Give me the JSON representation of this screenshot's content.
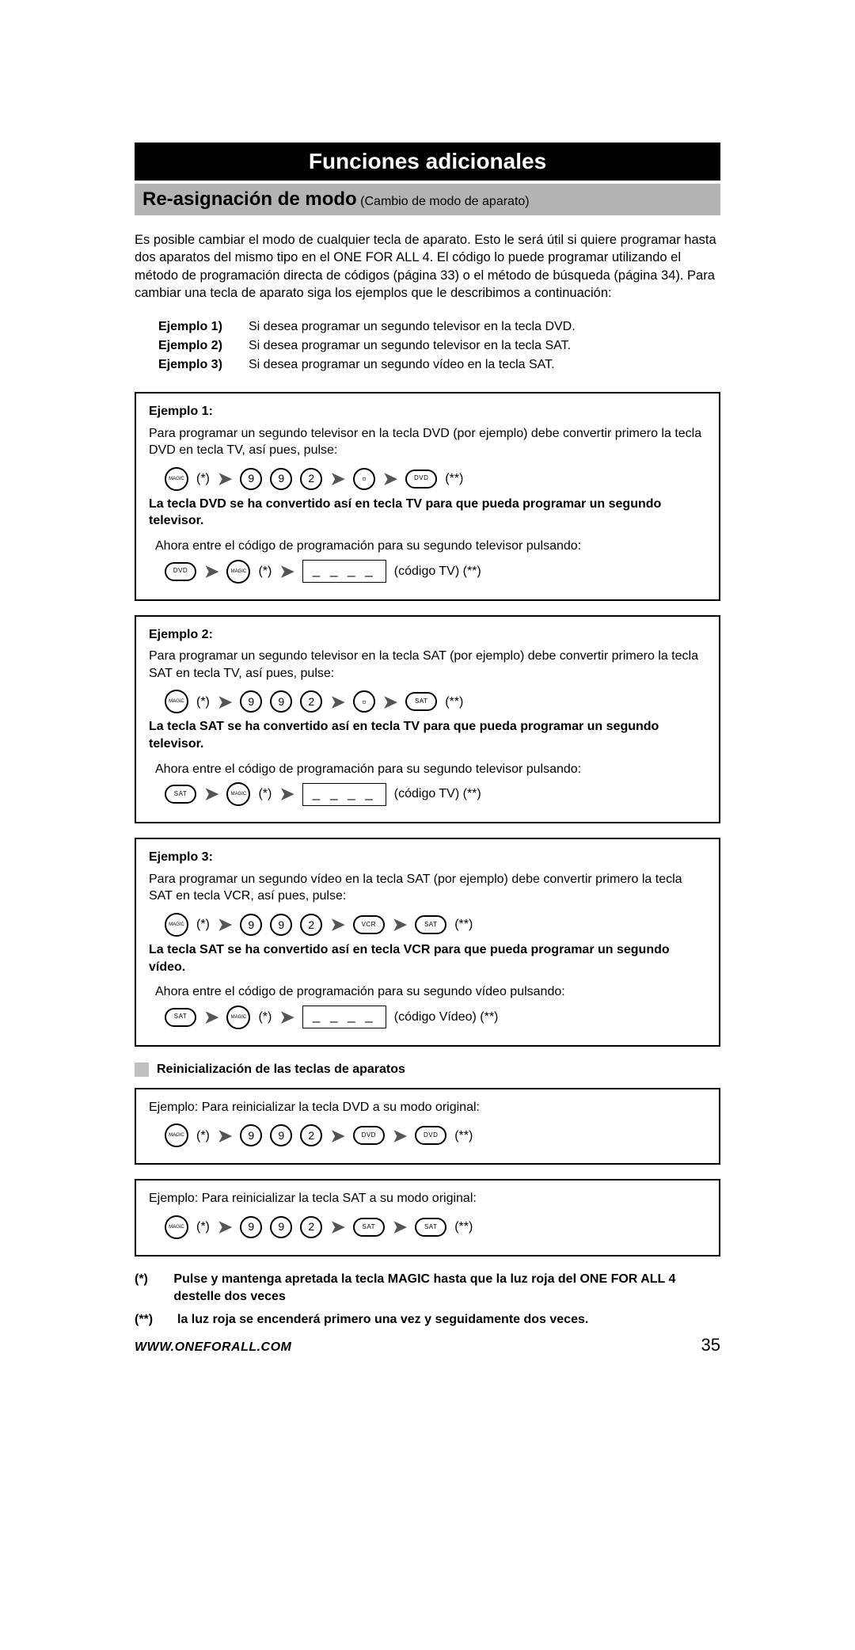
{
  "header": {
    "black": "Funciones adicionales",
    "gray_main": "Re-asignación de modo",
    "gray_sub": "(Cambio de modo de aparato)"
  },
  "intro": "Es posible cambiar el modo de cualquier tecla de aparato. Esto le será útil si quiere programar hasta dos aparatos del mismo tipo en el ONE FOR ALL 4. El código lo puede programar utilizando el método de programación directa de códigos (página 33) o el método de búsqueda (página 34). Para cambiar una tecla de aparato siga los ejemplos que le describimos a continuación:",
  "example_list": [
    {
      "label": "Ejemplo 1)",
      "text": "Si desea programar un segundo televisor en la tecla DVD."
    },
    {
      "label": "Ejemplo 2)",
      "text": "Si desea programar un segundo televisor en la tecla SAT."
    },
    {
      "label": "Ejemplo 3)",
      "text": "Si desea programar un segundo vídeo en la tecla SAT."
    }
  ],
  "examples": [
    {
      "title": "Ejemplo 1:",
      "desc": "Para programar un segundo televisor en la tecla DVD (por ejemplo) debe convertir primero la tecla DVD en tecla TV, así pues, pulse:",
      "seq1": {
        "prefix_note": "(*)",
        "digits": [
          "9",
          "9",
          "2"
        ],
        "mid_btn": "▫",
        "end_btn": "DVD",
        "suffix_note": "(**)"
      },
      "result": "La tecla DVD se ha convertido así en tecla TV para que pueda programar un segundo televisor.",
      "follow": "Ahora entre el código de programación para su segundo televisor pulsando:",
      "seq2": {
        "start_btn": "DVD",
        "mid_note": "(*)",
        "code_placeholder": "_ _ _ _",
        "code_label": "(código TV) (**)"
      }
    },
    {
      "title": "Ejemplo 2:",
      "desc": "Para programar un segundo televisor en la tecla SAT (por ejemplo) debe convertir primero la tecla SAT en tecla TV, así pues, pulse:",
      "seq1": {
        "prefix_note": "(*)",
        "digits": [
          "9",
          "9",
          "2"
        ],
        "mid_btn": "▫",
        "end_btn": "SAT",
        "suffix_note": "(**)"
      },
      "result": "La tecla SAT se ha convertido así en tecla TV para que pueda programar un segundo televisor.",
      "follow": "Ahora entre el código de programación para su segundo televisor pulsando:",
      "seq2": {
        "start_btn": "SAT",
        "mid_note": "(*)",
        "code_placeholder": "_ _ _ _",
        "code_label": "(código TV) (**)"
      }
    },
    {
      "title": "Ejemplo 3:",
      "desc": "Para programar un segundo vídeo en la tecla SAT (por ejemplo) debe convertir primero la tecla SAT en tecla VCR, así pues, pulse:",
      "seq1": {
        "prefix_note": "(*)",
        "digits": [
          "9",
          "9",
          "2"
        ],
        "mid_btn": "VCR",
        "mid_oval": true,
        "end_btn": "SAT",
        "suffix_note": "(**)"
      },
      "result": "La tecla SAT se ha convertido así en tecla VCR para que pueda programar un segundo vídeo.",
      "follow": "Ahora entre el código de programación para su segundo vídeo pulsando:",
      "seq2": {
        "start_btn": "SAT",
        "mid_note": "(*)",
        "code_placeholder": "_ _ _ _",
        "code_label": "(código Vídeo) (**)"
      }
    }
  ],
  "reset_heading": "Reinicialización de las teclas de aparatos",
  "resets": [
    {
      "desc": "Ejemplo: Para reinicializar la tecla DVD a su modo original:",
      "seq": {
        "prefix_note": "(*)",
        "digits": [
          "9",
          "9",
          "2"
        ],
        "btn": "DVD",
        "suffix_note": "(**)"
      }
    },
    {
      "desc": "Ejemplo: Para reinicializar la tecla SAT a su modo original:",
      "seq": {
        "prefix_note": "(*)",
        "digits": [
          "9",
          "9",
          "2"
        ],
        "btn": "SAT",
        "suffix_note": "(**)"
      }
    }
  ],
  "footnotes": [
    {
      "mark": "(*)",
      "text": "Pulse y mantenga apretada la tecla MAGIC hasta que la luz roja del ONE FOR ALL 4 destelle dos veces"
    },
    {
      "mark": "(**)",
      "text": "la luz roja se encenderá primero una vez y seguidamente dos veces."
    }
  ],
  "footer": {
    "url": "WWW.ONEFORALL.COM",
    "page": "35"
  },
  "labels": {
    "magic": "MAGIC"
  }
}
